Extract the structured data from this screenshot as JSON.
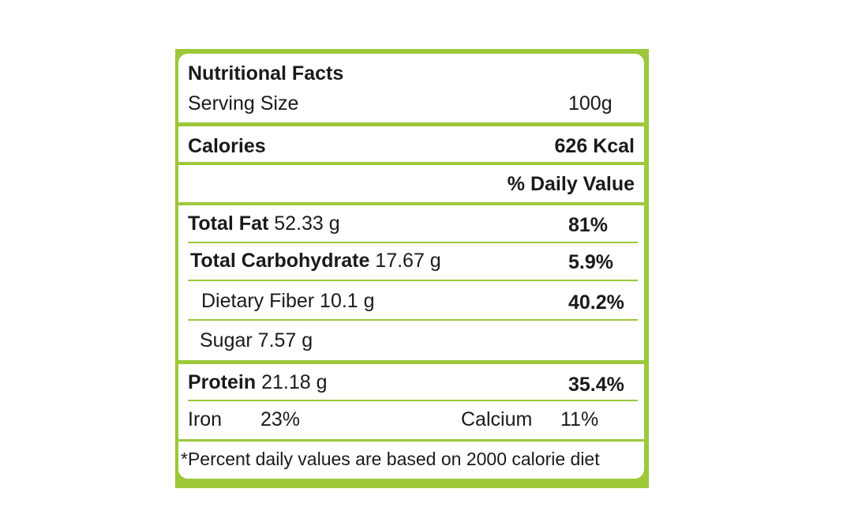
{
  "header": {
    "title": "Nutritional Facts",
    "serving_label": "Serving Size",
    "serving_value": "100g"
  },
  "calories": {
    "label": "Calories",
    "value": "626 Kcal"
  },
  "daily_value_header": "% Daily Value",
  "rows": [
    {
      "label": "Total Fat",
      "amount": "52.33 g",
      "dv": "81%"
    },
    {
      "label": "Total Carbohydrate",
      "amount": "17.67 g",
      "dv": "5.9%"
    },
    {
      "label": "Dietary Fiber",
      "amount": "10.1 g",
      "dv": "40.2%"
    },
    {
      "label": "Sugar",
      "amount": "7.57 g"
    },
    {
      "label": "Protein",
      "amount": "21.18 g",
      "dv": "35.4%"
    }
  ],
  "minerals": [
    {
      "label": "Iron",
      "value": "23%"
    },
    {
      "label": "Calcium",
      "value": "11%"
    }
  ],
  "footnote": "*Percent daily values are based on 2000 calorie diet"
}
